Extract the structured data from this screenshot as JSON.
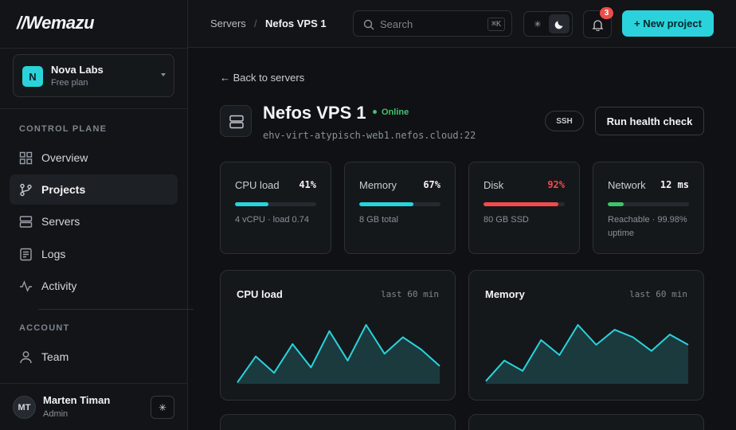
{
  "brand": {
    "logo": "//Wemazu"
  },
  "org": {
    "initial": "N",
    "name": "Nova Labs",
    "plan": "Free plan"
  },
  "sidebar": {
    "section_control": "CONTROL PLANE",
    "section_account": "ACCOUNT",
    "items": [
      {
        "label": "Overview",
        "icon": "grid-icon"
      },
      {
        "label": "Projects",
        "icon": "branch-icon",
        "active": true
      },
      {
        "label": "Servers",
        "icon": "server-icon"
      },
      {
        "label": "Logs",
        "icon": "log-icon"
      },
      {
        "label": "Activity",
        "icon": "activity-icon"
      }
    ],
    "account_items": [
      {
        "label": "Team",
        "icon": "user-icon"
      }
    ]
  },
  "user": {
    "initials": "MT",
    "name": "Marten Timan",
    "role": "Admin",
    "button_icon": "sun-icon"
  },
  "topbar": {
    "breadcrumb": [
      "Servers",
      "Nefos VPS 1"
    ],
    "breadcrumb_sep": "/",
    "search_placeholder": "Search",
    "search_shortcut": "⌘K",
    "notifications_count": "3",
    "new_project_label": "+ New project"
  },
  "server": {
    "back_label": "← Back to servers",
    "name": "Nefos VPS 1",
    "status": "Online",
    "host": "ehv-virt-atypisch-web1.nefos.cloud:22",
    "ssh_label": "SSH",
    "health_label": "Run health check"
  },
  "stats": [
    {
      "label": "CPU load",
      "value": "41%",
      "percent": 41,
      "color": "#2ad3dc",
      "value_color": "#f2f3f5",
      "sub": "4 vCPU · load 0.74"
    },
    {
      "label": "Memory",
      "value": "67%",
      "percent": 67,
      "color": "#2ad3dc",
      "value_color": "#f2f3f5",
      "sub": "8 GB total"
    },
    {
      "label": "Disk",
      "value": "92%",
      "percent": 92,
      "color": "#ef4c4c",
      "value_color": "#ef4c4c",
      "sub": "80 GB SSD"
    },
    {
      "label": "Network",
      "value": "12 ms",
      "percent": 20,
      "color": "#3fc46a",
      "value_color": "#f2f3f5",
      "sub": "Reachable · 99.98% uptime"
    }
  ],
  "charts": [
    {
      "title": "CPU load",
      "range": "last 60 min",
      "values": [
        2,
        40,
        16,
        58,
        24,
        77,
        34,
        86,
        44,
        68,
        50,
        26
      ]
    },
    {
      "title": "Memory",
      "range": "last 60 min",
      "values": [
        4,
        34,
        19,
        64,
        42,
        86,
        57,
        79,
        68,
        48,
        72,
        57
      ]
    }
  ]
}
